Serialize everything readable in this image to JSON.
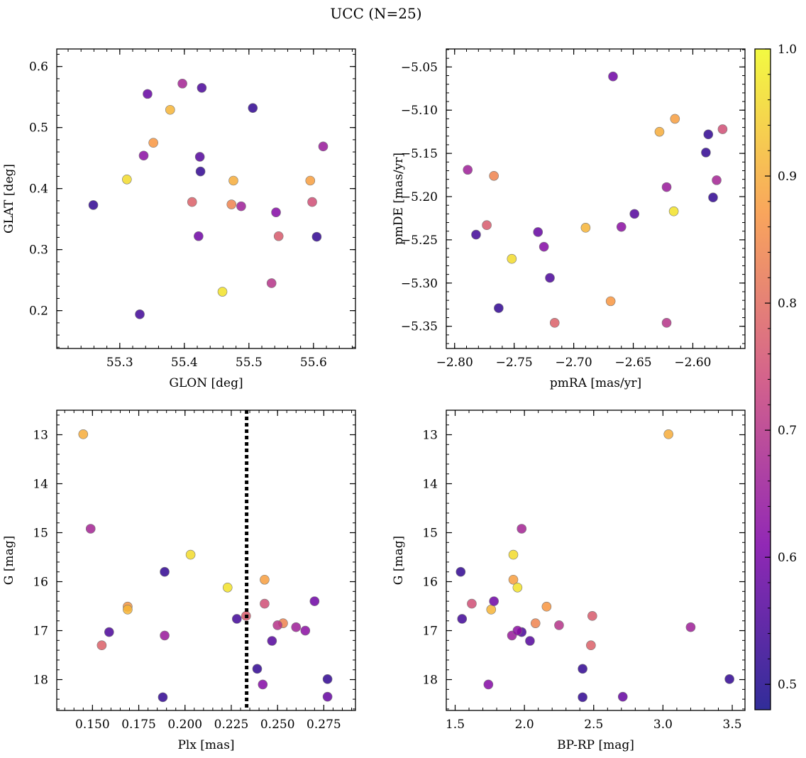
{
  "figure": {
    "title": "UCC (N=25)"
  },
  "colormap": {
    "name": "plasma",
    "range": [
      0.48,
      1.0
    ],
    "ticks": [
      0.5,
      0.6,
      0.7,
      0.8,
      0.9,
      1.0
    ],
    "tick_labels": [
      "0.5",
      "0.6",
      "0.7",
      "0.8",
      "0.9",
      "1.0"
    ]
  },
  "stars": {
    "prob": [
      0.52,
      0.54,
      0.58,
      0.52,
      0.65,
      0.87,
      0.91,
      0.88,
      0.75,
      0.62,
      0.96,
      0.55,
      0.63,
      0.78,
      0.56,
      0.84,
      0.66,
      0.7,
      0.52,
      0.77,
      0.97,
      0.9,
      0.59,
      0.67,
      0.52
    ],
    "glon": [
      55.259,
      55.331,
      55.343,
      55.605,
      55.615,
      55.352,
      55.378,
      55.595,
      55.598,
      55.542,
      55.311,
      55.427,
      55.337,
      55.412,
      55.424,
      55.473,
      55.488,
      55.535,
      55.506,
      55.546,
      55.459,
      55.476,
      55.422,
      55.397,
      55.425
    ],
    "glat": [
      0.373,
      0.194,
      0.555,
      0.321,
      0.469,
      0.475,
      0.529,
      0.413,
      0.378,
      0.361,
      0.415,
      0.565,
      0.454,
      0.378,
      0.452,
      0.374,
      0.371,
      0.245,
      0.532,
      0.322,
      0.231,
      0.413,
      0.322,
      0.572,
      0.428
    ],
    "pmra": [
      -2.763,
      -2.782,
      -2.73,
      -2.583,
      -2.622,
      -2.669,
      -2.69,
      -2.615,
      -2.575,
      -2.725,
      -2.752,
      -2.72,
      -2.66,
      -2.716,
      -2.649,
      -2.767,
      -2.789,
      -2.622,
      -2.589,
      -2.773,
      -2.616,
      -2.628,
      -2.667,
      -2.58,
      -2.587
    ],
    "pmde": [
      -5.329,
      -5.244,
      -5.241,
      -5.201,
      -5.189,
      -5.321,
      -5.236,
      -5.11,
      -5.122,
      -5.258,
      -5.272,
      -5.294,
      -5.235,
      -5.346,
      -5.22,
      -5.176,
      -5.169,
      -5.346,
      -5.149,
      -5.233,
      -5.217,
      -5.125,
      -5.061,
      -5.181,
      -5.128
    ],
    "plx": [
      0.188,
      0.228,
      0.277,
      0.239,
      0.189,
      0.169,
      0.169,
      0.243,
      0.243,
      0.242,
      0.203,
      0.159,
      0.265,
      0.155,
      0.247,
      0.253,
      0.26,
      0.25,
      0.277,
      0.233,
      0.223,
      0.145,
      0.27,
      0.149,
      0.189
    ],
    "gmag": [
      18.36,
      16.76,
      18.35,
      17.78,
      17.1,
      16.51,
      16.57,
      15.96,
      16.45,
      18.1,
      15.45,
      17.03,
      17.0,
      17.3,
      17.21,
      16.85,
      16.93,
      16.89,
      17.99,
      16.7,
      16.12,
      12.99,
      16.4,
      14.92,
      15.8
    ],
    "bprp": [
      2.42,
      1.55,
      2.71,
      2.42,
      1.91,
      2.16,
      1.76,
      1.92,
      1.62,
      1.74,
      1.92,
      1.98,
      1.95,
      2.48,
      2.04,
      2.08,
      3.2,
      2.25,
      3.48,
      2.49,
      1.95,
      3.04,
      1.78,
      1.98,
      1.54
    ]
  },
  "chart_data": [
    {
      "type": "scatter",
      "panel": "glon-glat",
      "xlabel": "GLON [deg]",
      "ylabel": "GLAT [deg]",
      "xlim": [
        55.2024,
        55.665
      ],
      "ylim": [
        0.138,
        0.6287
      ],
      "xticks": [
        55.3,
        55.4,
        55.5,
        55.6
      ],
      "xtick_labels": [
        "55.3",
        "55.4",
        "55.5",
        "55.6"
      ],
      "yticks": [
        0.2,
        0.3,
        0.4,
        0.5,
        0.6
      ],
      "ytick_labels": [
        "0.2",
        "0.3",
        "0.4",
        "0.5",
        "0.6"
      ],
      "xminor": 0.02,
      "yminor": 0.02,
      "x_field": "glon",
      "y_field": "glat"
    },
    {
      "type": "scatter",
      "panel": "pmra-pmde",
      "xlabel": "pmRA [mas/yr]",
      "ylabel": "pmDE [mas/yr]",
      "xlim": [
        -2.807,
        -2.5562
      ],
      "ylim": [
        -5.3757,
        -5.0292
      ],
      "xticks": [
        -2.8,
        -2.75,
        -2.7,
        -2.65,
        -2.6
      ],
      "xtick_labels": [
        "−2.80",
        "−2.75",
        "−2.70",
        "−2.65",
        "−2.60"
      ],
      "yticks": [
        -5.35,
        -5.3,
        -5.25,
        -5.2,
        -5.15,
        -5.1,
        -5.05
      ],
      "ytick_labels": [
        "−5.35",
        "−5.30",
        "−5.25",
        "−5.20",
        "−5.15",
        "−5.10",
        "−5.05"
      ],
      "xminor": 0.01,
      "yminor": 0.01,
      "x_field": "pmra",
      "y_field": "pmde"
    },
    {
      "type": "scatter",
      "panel": "plx-g",
      "xlabel": "Plx [mas]",
      "ylabel": "G [mag]",
      "xlim": [
        0.1307,
        0.2921
      ],
      "ylim": [
        18.63,
        12.5
      ],
      "xticks": [
        0.15,
        0.175,
        0.2,
        0.225,
        0.25,
        0.275
      ],
      "xtick_labels": [
        "0.150",
        "0.175",
        "0.200",
        "0.225",
        "0.250",
        "0.275"
      ],
      "yticks": [
        13,
        14,
        15,
        16,
        17,
        18
      ],
      "ytick_labels": [
        "13",
        "14",
        "15",
        "16",
        "17",
        "18"
      ],
      "xminor": 0.005,
      "yminor": 0.2,
      "x_field": "plx",
      "y_field": "gmag",
      "vline": 0.2333
    },
    {
      "type": "scatter",
      "panel": "bprp-g",
      "xlabel": "BP-RP [mag]",
      "ylabel": "G [mag]",
      "xlim": [
        1.436,
        3.592
      ],
      "ylim": [
        18.63,
        12.5
      ],
      "xticks": [
        1.5,
        2.0,
        2.5,
        3.0,
        3.5
      ],
      "xtick_labels": [
        "1.5",
        "2.0",
        "2.5",
        "3.0",
        "3.5"
      ],
      "yticks": [
        13,
        14,
        15,
        16,
        17,
        18
      ],
      "ytick_labels": [
        "13",
        "14",
        "15",
        "16",
        "17",
        "18"
      ],
      "xminor": 0.1,
      "yminor": 0.2,
      "x_field": "bprp",
      "y_field": "gmag"
    }
  ]
}
